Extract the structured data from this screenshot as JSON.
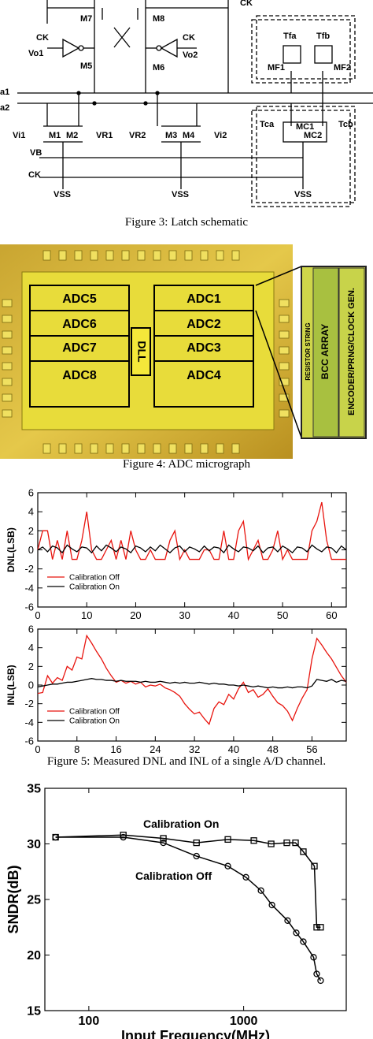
{
  "captions": [
    "Figure 3: Latch schematic",
    "Figure 4: ADC micrograph",
    "Figure 5: Measured DNL and INL of a single A/D channel."
  ],
  "schematic": {
    "labels": [
      "CK",
      "CK",
      "Vo1",
      "CK",
      "Vo2",
      "M7",
      "M8",
      "M5",
      "M6",
      "Tfa",
      "Tfb",
      "MF1",
      "MF2",
      "a1",
      "a2",
      "Vi1",
      "M1",
      "M2",
      "VR1",
      "VR2",
      "M3",
      "M4",
      "Vi2",
      "VB",
      "CK",
      "VSS",
      "VSS",
      "VSS",
      "Tca",
      "Tcb",
      "MC1",
      "MC2"
    ]
  },
  "micrograph": {
    "blocks": [
      "ADC5",
      "ADC6",
      "ADC7",
      "ADC8",
      "ADC1",
      "ADC2",
      "ADC3",
      "ADC4",
      "DLL"
    ],
    "inset": [
      "RESISTOR STRING",
      "BCC ARRAY",
      "ENCODER/PRNG/CLOCK GEN."
    ]
  },
  "chart_data": [
    {
      "type": "line",
      "ylabel": "DNL(LSB)",
      "xlim": [
        0,
        63
      ],
      "xticks": [
        0,
        10,
        20,
        30,
        40,
        50,
        60
      ],
      "ylim": [
        -6,
        6
      ],
      "yticks": [
        -6,
        -4,
        -2,
        0,
        2,
        4,
        6
      ],
      "legend": "lower left",
      "x": [
        0,
        1,
        2,
        3,
        4,
        5,
        6,
        7,
        8,
        9,
        10,
        11,
        12,
        13,
        14,
        15,
        16,
        17,
        18,
        19,
        20,
        21,
        22,
        23,
        24,
        25,
        26,
        27,
        28,
        29,
        30,
        31,
        32,
        33,
        34,
        35,
        36,
        37,
        38,
        39,
        40,
        41,
        42,
        43,
        44,
        45,
        46,
        47,
        48,
        49,
        50,
        51,
        52,
        53,
        54,
        55,
        56,
        57,
        58,
        59,
        60,
        61,
        62,
        63
      ],
      "series": [
        {
          "name": "Calibration Off",
          "color": "#e8140e",
          "values": [
            0,
            2,
            2,
            -1,
            1,
            -1,
            2,
            -1,
            -1,
            1,
            4,
            0,
            -1,
            -1,
            0,
            1,
            -1,
            1,
            -1,
            2,
            0,
            -1,
            -1,
            0,
            -1,
            -1,
            -1,
            1,
            2,
            -1,
            0,
            -1,
            -1,
            -1,
            0,
            0,
            -1,
            -1,
            2,
            -1,
            -1,
            2,
            3,
            -1,
            0,
            1,
            -1,
            -1,
            0,
            2,
            -1,
            0,
            -1,
            -1,
            -1,
            -1,
            2,
            3,
            5,
            1,
            -1,
            -1,
            -1,
            -1
          ]
        },
        {
          "name": "Calibration On",
          "color": "#000000",
          "values": [
            0,
            0.3,
            -0.2,
            0.4,
            0.2,
            -0.3,
            0.5,
            0.1,
            -0.2,
            0.3,
            0.2,
            -0.3,
            0.4,
            -0.1,
            0.5,
            0.2,
            -0.2,
            0.3,
            0.1,
            -0.3,
            0.4,
            0.2,
            -0.2,
            0.3,
            -0.1,
            0.5,
            0.1,
            -0.3,
            0.2,
            0.4,
            -0.2,
            0.3,
            0.1,
            -0.2,
            0.4,
            -0.1,
            0.3,
            0.2,
            -0.3,
            0.5,
            0.1,
            -0.2,
            0.3,
            0.2,
            -0.1,
            0.4,
            -0.3,
            0.2,
            0.3,
            -0.2,
            0.4,
            0.1,
            -0.3,
            0.3,
            0.2,
            -0.2,
            0.5,
            0.1,
            -0.2,
            0.3,
            0.2,
            -0.3,
            0.4,
            0
          ]
        }
      ]
    },
    {
      "type": "line",
      "ylabel": "INL(LSB)",
      "xlim": [
        0,
        63
      ],
      "xticks": [
        0,
        8,
        16,
        24,
        32,
        40,
        48,
        56
      ],
      "ylim": [
        -6,
        6
      ],
      "yticks": [
        -6,
        -4,
        -2,
        0,
        2,
        4,
        6
      ],
      "legend": "lower left",
      "x": [
        0,
        1,
        2,
        3,
        4,
        5,
        6,
        7,
        8,
        9,
        10,
        11,
        12,
        13,
        14,
        15,
        16,
        17,
        18,
        19,
        20,
        21,
        22,
        23,
        24,
        25,
        26,
        27,
        28,
        29,
        30,
        31,
        32,
        33,
        34,
        35,
        36,
        37,
        38,
        39,
        40,
        41,
        42,
        43,
        44,
        45,
        46,
        47,
        48,
        49,
        50,
        51,
        52,
        53,
        54,
        55,
        56,
        57,
        58,
        59,
        60,
        61,
        62,
        63
      ],
      "series": [
        {
          "name": "Calibration Off",
          "color": "#e8140e",
          "values": [
            -0.9,
            -0.8,
            1.0,
            0.2,
            0.8,
            0.5,
            2.0,
            1.6,
            3.0,
            2.8,
            5.3,
            4.5,
            3.6,
            2.8,
            1.8,
            1.0,
            0.3,
            0.5,
            0.2,
            0.4,
            0.1,
            0.3,
            -0.2,
            0.0,
            -0.1,
            0.1,
            -0.3,
            -0.5,
            -0.8,
            -1.2,
            -2.0,
            -2.6,
            -3.1,
            -2.9,
            -3.6,
            -4.2,
            -2.5,
            -1.8,
            -2.1,
            -1.0,
            -1.5,
            -0.4,
            0.3,
            -0.8,
            -0.5,
            -1.3,
            -1.0,
            -0.4,
            -1.2,
            -1.9,
            -2.2,
            -2.8,
            -3.8,
            -2.5,
            -1.4,
            -0.5,
            2.8,
            5.0,
            4.3,
            3.5,
            2.8,
            1.9,
            1.0,
            0.3
          ]
        },
        {
          "name": "Calibration On",
          "color": "#000000",
          "values": [
            -0.2,
            -0.1,
            0.0,
            0.1,
            0.1,
            0.2,
            0.3,
            0.3,
            0.4,
            0.5,
            0.6,
            0.7,
            0.6,
            0.6,
            0.5,
            0.5,
            0.4,
            0.5,
            0.4,
            0.4,
            0.4,
            0.3,
            0.4,
            0.3,
            0.3,
            0.4,
            0.3,
            0.2,
            0.3,
            0.2,
            0.3,
            0.2,
            0.2,
            0.3,
            0.2,
            0.1,
            0.2,
            0.1,
            0.1,
            0.0,
            0.0,
            -0.1,
            0.0,
            -0.1,
            -0.2,
            -0.1,
            -0.2,
            -0.3,
            -0.2,
            -0.3,
            -0.3,
            -0.2,
            -0.3,
            -0.2,
            -0.2,
            -0.3,
            -0.1,
            0.6,
            0.5,
            0.4,
            0.6,
            0.3,
            0.5,
            0.4
          ]
        }
      ]
    },
    {
      "type": "line",
      "xlabel": "Input Frequency(MHz)",
      "ylabel": "SNDR(dB)",
      "xscale": "log",
      "xlim": [
        52,
        4600
      ],
      "xticks": [
        100,
        1000
      ],
      "ylim": [
        15,
        35
      ],
      "yticks": [
        15,
        20,
        25,
        30,
        35
      ],
      "series": [
        {
          "name": "Calibration On",
          "color": "#000000",
          "marker": "square",
          "x": [
            61,
            167,
            303,
            496,
            791,
            1164,
            1506,
            1901,
            2163,
            2430,
            2864,
            2965,
            3142
          ],
          "values": [
            30.6,
            30.8,
            30.5,
            30.1,
            30.4,
            30.3,
            30.0,
            30.1,
            30.1,
            29.3,
            28.0,
            22.5,
            22.5
          ]
        },
        {
          "name": "Calibration Off",
          "color": "#000000",
          "marker": "circle",
          "x": [
            61,
            167,
            303,
            496,
            791,
            1035,
            1294,
            1524,
            1923,
            2188,
            2430,
            2830,
            2965,
            3142
          ],
          "values": [
            30.6,
            30.6,
            30.1,
            28.9,
            28.0,
            27.0,
            25.8,
            24.5,
            23.1,
            22.0,
            21.2,
            19.8,
            18.3,
            17.7
          ]
        }
      ]
    }
  ]
}
